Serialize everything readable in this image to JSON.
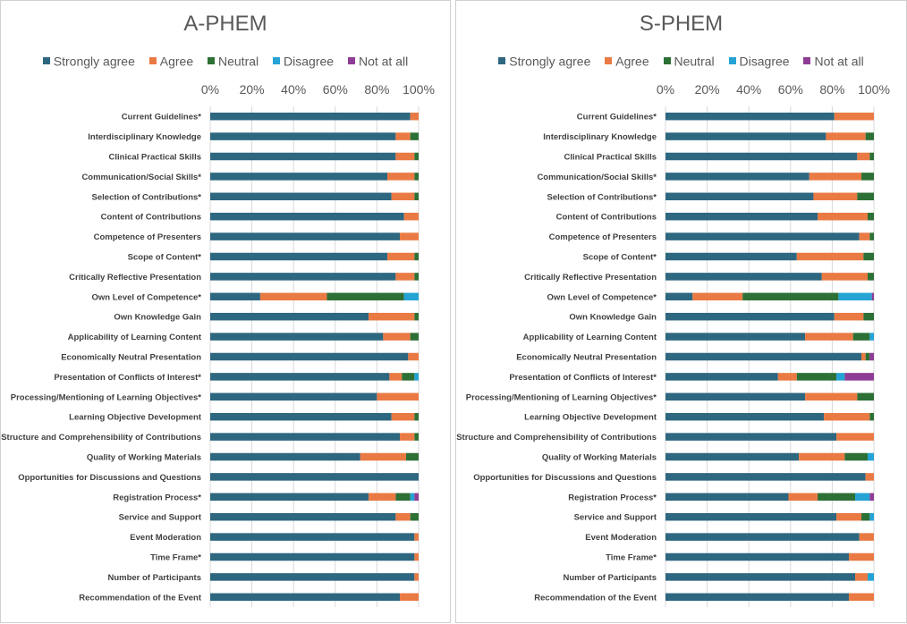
{
  "legend": [
    {
      "label": "Strongly agree",
      "color": "#2e6780"
    },
    {
      "label": "Agree",
      "color": "#ea7a44"
    },
    {
      "label": "Neutral",
      "color": "#2d7036"
    },
    {
      "label": "Disagree",
      "color": "#24a3d4"
    },
    {
      "label": "Not at all",
      "color": "#8e3c95"
    }
  ],
  "chart_data": [
    {
      "type": "bar",
      "orientation": "horizontal-stacked-percent",
      "title": "A-PHEM",
      "x_ticks": [
        "0%",
        "20%",
        "40%",
        "60%",
        "80%",
        "100%"
      ],
      "xlim": [
        0,
        100
      ],
      "legend_position": "top",
      "categories": [
        "Current Guidelines*",
        "Interdisciplinary Knowledge",
        "Clinical Practical Skills",
        "Communication/Social Skills*",
        "Selection of Contributions*",
        "Content of Contributions",
        "Competence of Presenters",
        "Scope of Content*",
        "Critically Reflective Presentation",
        "Own Level of Competence*",
        "Own Knowledge Gain",
        "Applicability of Learning Content",
        "Economically Neutral Presentation",
        "Presentation of Conflicts of Interest*",
        "Processing/Mentioning of Learning Objectives*",
        "Learning Objective Development",
        "Structure and Comprehensibility of Contributions",
        "Quality of Working Materials",
        "Opportunities for Discussions and Questions",
        "Registration Process*",
        "Service and Support",
        "Event Moderation",
        "Time Frame*",
        "Number of Participants",
        "Recommendation of the Event"
      ],
      "series": [
        {
          "name": "Strongly agree",
          "values": [
            96,
            89,
            89,
            85,
            87,
            93,
            91,
            85,
            89,
            24,
            76,
            83,
            95,
            86,
            80,
            87,
            91,
            72,
            100,
            76,
            89,
            98,
            98,
            98,
            91
          ]
        },
        {
          "name": "Agree",
          "values": [
            4,
            7,
            9,
            13,
            11,
            7,
            9,
            13,
            9,
            32,
            22,
            13,
            5,
            6,
            20,
            11,
            7,
            22,
            0,
            13,
            7,
            2,
            2,
            2,
            9
          ]
        },
        {
          "name": "Neutral",
          "values": [
            0,
            4,
            2,
            2,
            2,
            0,
            0,
            2,
            2,
            37,
            2,
            4,
            0,
            6,
            0,
            2,
            2,
            6,
            0,
            7,
            4,
            0,
            0,
            0,
            0
          ]
        },
        {
          "name": "Disagree",
          "values": [
            0,
            0,
            0,
            0,
            0,
            0,
            0,
            0,
            0,
            7,
            0,
            0,
            0,
            2,
            0,
            0,
            0,
            0,
            0,
            2,
            0,
            0,
            0,
            0,
            0
          ]
        },
        {
          "name": "Not at all",
          "values": [
            0,
            0,
            0,
            0,
            0,
            0,
            0,
            0,
            0,
            0,
            0,
            0,
            0,
            0,
            0,
            0,
            0,
            0,
            0,
            2,
            0,
            0,
            0,
            0,
            0
          ]
        }
      ]
    },
    {
      "type": "bar",
      "orientation": "horizontal-stacked-percent",
      "title": "S-PHEM",
      "x_ticks": [
        "0%",
        "20%",
        "40%",
        "60%",
        "80%",
        "100%"
      ],
      "xlim": [
        0,
        100
      ],
      "legend_position": "top",
      "categories": [
        "Current Guidelines*",
        "Interdisciplinary Knowledge",
        "Clinical Practical Skills",
        "Communication/Social Skills*",
        "Selection of Contributions*",
        "Content of Contributions",
        "Competence of Presenters",
        "Scope of Content*",
        "Critically Reflective Presentation",
        "Own Level of Competence*",
        "Own Knowledge Gain",
        "Applicability of Learning Content",
        "Economically Neutral Presentation",
        "Presentation of Conflicts of Interest*",
        "Processing/Mentioning of Learning Objectives*",
        "Learning Objective Development",
        "Structure and Comprehensibility of Contributions",
        "Quality of Working Materials",
        "Opportunities for Discussions and Questions",
        "Registration Process*",
        "Service and Support",
        "Event Moderation",
        "Time Frame*",
        "Number of Participants",
        "Recommendation of the Event"
      ],
      "series": [
        {
          "name": "Strongly agree",
          "values": [
            81,
            77,
            92,
            69,
            71,
            73,
            93,
            63,
            75,
            13,
            81,
            67,
            94,
            54,
            67,
            76,
            82,
            64,
            96,
            59,
            82,
            93,
            88,
            91,
            88
          ]
        },
        {
          "name": "Agree",
          "values": [
            19,
            19,
            6,
            25,
            21,
            24,
            5,
            32,
            22,
            24,
            14,
            23,
            2,
            9,
            25,
            22,
            18,
            22,
            4,
            14,
            12,
            7,
            12,
            6,
            12
          ]
        },
        {
          "name": "Neutral",
          "values": [
            0,
            4,
            2,
            6,
            8,
            3,
            2,
            5,
            3,
            46,
            5,
            8,
            2,
            19,
            8,
            2,
            0,
            11,
            0,
            18,
            4,
            0,
            0,
            0,
            0
          ]
        },
        {
          "name": "Disagree",
          "values": [
            0,
            0,
            0,
            0,
            0,
            0,
            0,
            0,
            0,
            16,
            0,
            2,
            0,
            4,
            0,
            0,
            0,
            3,
            0,
            7,
            2,
            0,
            0,
            3,
            0
          ]
        },
        {
          "name": "Not at all",
          "values": [
            0,
            0,
            0,
            0,
            0,
            0,
            0,
            0,
            0,
            1,
            0,
            0,
            2,
            14,
            0,
            0,
            0,
            0,
            0,
            2,
            0,
            0,
            0,
            0,
            0
          ]
        }
      ]
    }
  ]
}
